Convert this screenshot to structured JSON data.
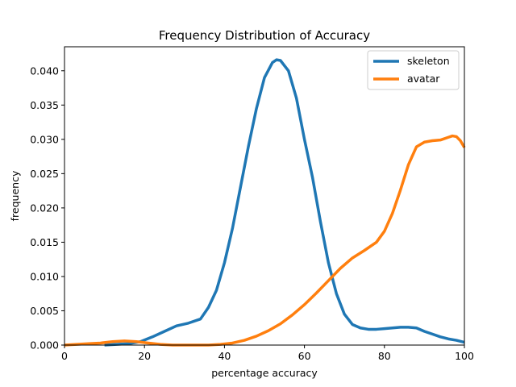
{
  "chart_data": {
    "type": "line",
    "title": "Frequency Distribution of Accuracy",
    "xlabel": "percentage accuracy",
    "ylabel": "frequency",
    "xlim": [
      0,
      100
    ],
    "ylim": [
      0,
      0.0435
    ],
    "xticks": [
      0,
      20,
      40,
      60,
      80,
      100
    ],
    "xtick_labels": [
      "0",
      "20",
      "40",
      "60",
      "80",
      "100"
    ],
    "yticks": [
      0,
      0.005,
      0.01,
      0.015,
      0.02,
      0.025,
      0.03,
      0.035,
      0.04
    ],
    "ytick_labels": [
      "0.000",
      "0.005",
      "0.010",
      "0.015",
      "0.020",
      "0.025",
      "0.030",
      "0.035",
      "0.040"
    ],
    "grid": false,
    "legend_position": "top-right",
    "series": [
      {
        "name": "skeleton",
        "color": "#1f77b4",
        "x": [
          10,
          13,
          16,
          19,
          22,
          25,
          28,
          31,
          34,
          36,
          38,
          40,
          42,
          44,
          46,
          48,
          50,
          52,
          53,
          54,
          56,
          58,
          60,
          62,
          64,
          66,
          68,
          70,
          72,
          74,
          76,
          78,
          80,
          82,
          84,
          86,
          88,
          90,
          92,
          94,
          96,
          98,
          100
        ],
        "y": [
          0.0,
          0.0001,
          0.0002,
          0.0005,
          0.0012,
          0.002,
          0.0028,
          0.0032,
          0.0038,
          0.0055,
          0.008,
          0.012,
          0.017,
          0.023,
          0.029,
          0.0345,
          0.039,
          0.0412,
          0.0416,
          0.0415,
          0.04,
          0.036,
          0.03,
          0.0245,
          0.018,
          0.012,
          0.0075,
          0.0045,
          0.003,
          0.0025,
          0.0023,
          0.0023,
          0.0024,
          0.0025,
          0.0026,
          0.0026,
          0.0025,
          0.002,
          0.0016,
          0.0012,
          0.0009,
          0.0007,
          0.0004
        ]
      },
      {
        "name": "avatar",
        "color": "#ff7f0e",
        "x": [
          0,
          3,
          6,
          9,
          12,
          15,
          18,
          21,
          24,
          27,
          30,
          33,
          36,
          39,
          42,
          45,
          48,
          51,
          54,
          57,
          60,
          63,
          66,
          69,
          72,
          75,
          78,
          80,
          82,
          84,
          86,
          88,
          90,
          92,
          94,
          96,
          97,
          98,
          99,
          100
        ],
        "y": [
          0.0,
          0.0001,
          0.0002,
          0.0003,
          0.0005,
          0.0006,
          0.0005,
          0.0003,
          0.0001,
          0.0,
          0.0,
          0.0,
          0.0,
          0.0001,
          0.0003,
          0.0007,
          0.0013,
          0.0021,
          0.0031,
          0.0044,
          0.0059,
          0.0076,
          0.0094,
          0.0112,
          0.0127,
          0.0138,
          0.015,
          0.0166,
          0.0192,
          0.0226,
          0.0263,
          0.0289,
          0.0296,
          0.0298,
          0.0299,
          0.0303,
          0.0305,
          0.0304,
          0.0298,
          0.0288
        ]
      }
    ]
  }
}
